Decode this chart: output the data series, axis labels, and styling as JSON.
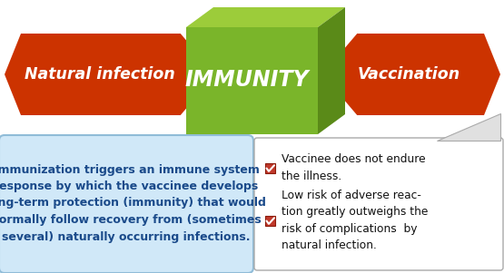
{
  "bg_color": "#ffffff",
  "arrow_color": "#cc3300",
  "cube_front": "#7ab52a",
  "cube_top": "#9ccc3a",
  "cube_side": "#5a8a18",
  "left_arrow_text": "Natural infection",
  "center_text": "IMMUNITY",
  "right_arrow_text": "Vaccination",
  "left_box_bg": "#d0e8f8",
  "left_box_border": "#90bcd8",
  "left_box_text": "Immunization triggers an immune system\nresponse by which the vaccinee develops\nlong-term protection (immunity) that would\nnormally follow recovery from (sometimes\nseveral) naturally occurring infections.",
  "right_box_bg": "#ffffff",
  "right_box_border": "#bbbbbb",
  "checkbox_color": "#c0392b",
  "right_text1": "Vaccinee does not endure\nthe illness.",
  "right_text2": "Low risk of adverse reac-\ntion greatly outweighs the\nrisk of complications  by\nnatural infection.",
  "figsize": [
    5.55,
    3.01
  ],
  "dpi": 100
}
